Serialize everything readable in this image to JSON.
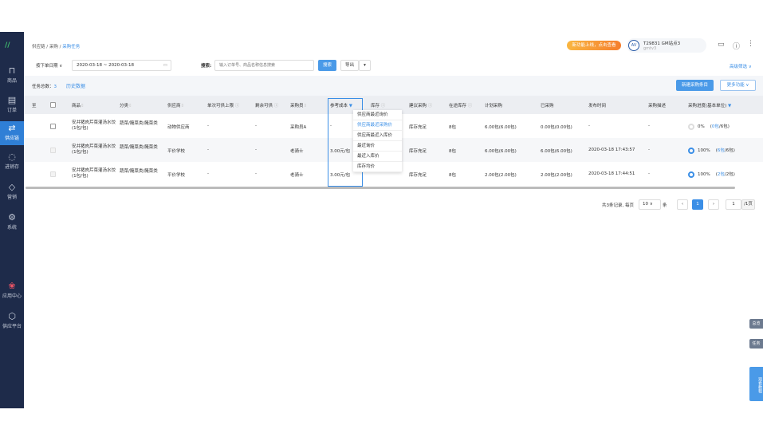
{
  "breadcrumb": [
    "供应链",
    "采购",
    "采购任务"
  ],
  "header": {
    "promo": "新功能上线，点击查看",
    "user_name": "T29831 GM站点3",
    "user_sub": "gmtv3",
    "avatar": "AV"
  },
  "sidebar": {
    "items": [
      {
        "label": "商品",
        "icon": "bag-icon"
      },
      {
        "label": "订单",
        "icon": "document-icon"
      },
      {
        "label": "供应链",
        "icon": "swap-icon",
        "active": true
      },
      {
        "label": "进销存",
        "icon": "cycle-icon"
      },
      {
        "label": "营销",
        "icon": "tag-icon"
      },
      {
        "label": "系统",
        "icon": "gear-icon"
      },
      {
        "label": "应用中心",
        "icon": "apps-icon"
      },
      {
        "label": "供应平台",
        "icon": "cube-icon"
      }
    ]
  },
  "filters": {
    "date_type": "按下单日期",
    "date_range": "2020-03-18 ~ 2020-03-18",
    "search_label": "搜索:",
    "search_placeholder": "输入订单号、商品名称信息搜索",
    "search_btn": "搜索",
    "export_btn": "导出",
    "advanced": "高级筛选"
  },
  "summary": {
    "label": "任务总数：",
    "count": "3",
    "history": "历史数据",
    "new_btn": "新建采购条目",
    "more_btn": "更多功能"
  },
  "table": {
    "columns": [
      "至",
      "",
      "商品",
      "分类",
      "供应商",
      "单次可供上限",
      "剩余可供",
      "采购员",
      "参考成本",
      "库存",
      "建议采购",
      "在途库存",
      "计划采购",
      "已采购",
      "发布时间",
      "采购描述",
      "采购进度(基本单位)"
    ],
    "rows": [
      {
        "product": "安井猪肉芹菜灌汤水饺(1包/包)",
        "category": "蔬菜/腌菜类/腌菜类",
        "supplier": "动物供应商",
        "limit": "-",
        "remain": "-",
        "buyer": "采购员A",
        "cost": "-",
        "suggest": "库存充足",
        "transit": "8包",
        "plan": "6.00包(6.00包)",
        "bought": "0.00包(0.00包)",
        "time": "-",
        "desc": "-",
        "progress": 0,
        "progress_text": "0%",
        "ratio_done": "0包",
        "ratio_total": "/6包"
      },
      {
        "product": "安井猪肉芹菜灌汤水饺(1包/包)",
        "category": "蔬菜/腌菜类/腌菜类",
        "supplier": "平价学校",
        "limit": "-",
        "remain": "-",
        "buyer": "老骑士",
        "cost": "3.00元/包",
        "suggest": "库存充足",
        "transit": "8包",
        "plan": "6.00包(6.00包)",
        "bought": "6.00包(6.00包)",
        "time": "2020-03-18 17:43:57",
        "desc": "-",
        "progress": 100,
        "progress_text": "100%",
        "ratio_done": "6包",
        "ratio_total": "/6包"
      },
      {
        "product": "安井猪肉芹菜灌汤水饺(1包/包)",
        "category": "蔬菜/腌菜类/腌菜类",
        "supplier": "平价学校",
        "limit": "-",
        "remain": "-",
        "buyer": "老骑士",
        "cost": "3.00元/包",
        "suggest": "库存充足",
        "transit": "8包",
        "plan": "2.00包(2.00包)",
        "bought": "2.00包(2.00包)",
        "time": "2020-03-18 17:44:51",
        "desc": "-",
        "progress": 100,
        "progress_text": "100%",
        "ratio_done": "2包",
        "ratio_total": "/2包"
      }
    ]
  },
  "cost_dropdown": {
    "items": [
      "供应商最近询价",
      "供应商最近采购价",
      "供应商最近入库价",
      "最近询价",
      "最近入库价",
      "库存均价"
    ],
    "selected": 1
  },
  "pagination": {
    "total_text": "共3条记录, 每页",
    "page_size": "10",
    "unit": "条",
    "current": "1",
    "jump": "1",
    "pages": "/1页"
  },
  "side_tabs": [
    "总览",
    "任务",
    "观看教程"
  ],
  "colors": {
    "accent": "#3a8ee6",
    "sidebar": "#1e2b4a",
    "promo": "#f7a23b"
  }
}
